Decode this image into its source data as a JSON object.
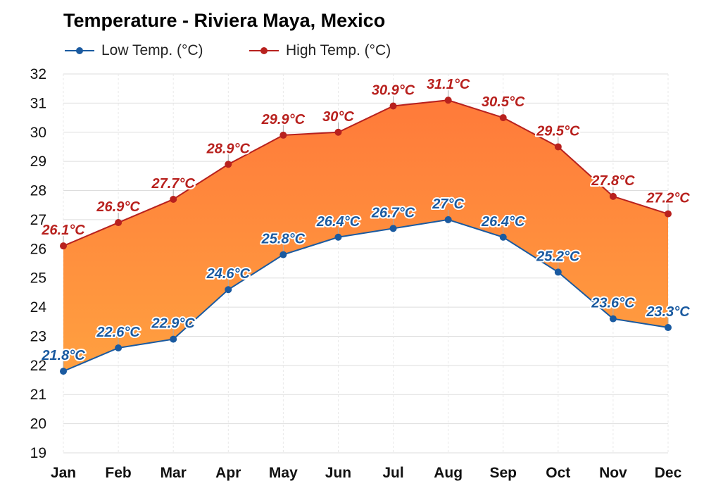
{
  "chart_data": {
    "type": "area",
    "title": "Temperature - Riviera Maya, Mexico",
    "categories": [
      "Jan",
      "Feb",
      "Mar",
      "Apr",
      "May",
      "Jun",
      "Jul",
      "Aug",
      "Sep",
      "Oct",
      "Nov",
      "Dec"
    ],
    "ylim": [
      19,
      32
    ],
    "yticks": [
      19,
      20,
      21,
      22,
      23,
      24,
      25,
      26,
      27,
      28,
      29,
      30,
      31,
      32
    ],
    "grid": true,
    "legend_placement": "top-left",
    "series": [
      {
        "name": "Low Temp. (°C)",
        "color": "#1a5aa0",
        "values": [
          21.8,
          22.6,
          22.9,
          24.6,
          25.8,
          26.4,
          26.7,
          27,
          26.4,
          25.2,
          23.6,
          23.3
        ],
        "labels": [
          "21.8°C",
          "22.6°C",
          "22.9°C",
          "24.6°C",
          "25.8°C",
          "26.4°C",
          "26.7°C",
          "27°C",
          "26.4°C",
          "25.2°C",
          "23.6°C",
          "23.3°C"
        ]
      },
      {
        "name": "High Temp. (°C)",
        "color": "#b8211e",
        "values": [
          26.1,
          26.9,
          27.7,
          28.9,
          29.9,
          30,
          30.9,
          31.1,
          30.5,
          29.5,
          27.8,
          27.2
        ],
        "labels": [
          "26.1°C",
          "26.9°C",
          "27.7°C",
          "28.9°C",
          "29.9°C",
          "30°C",
          "30.9°C",
          "31.1°C",
          "30.5°C",
          "29.5°C",
          "27.8°C",
          "27.2°C"
        ]
      }
    ],
    "fill_colors": [
      "#ffa040",
      "#ff7a3a"
    ]
  }
}
